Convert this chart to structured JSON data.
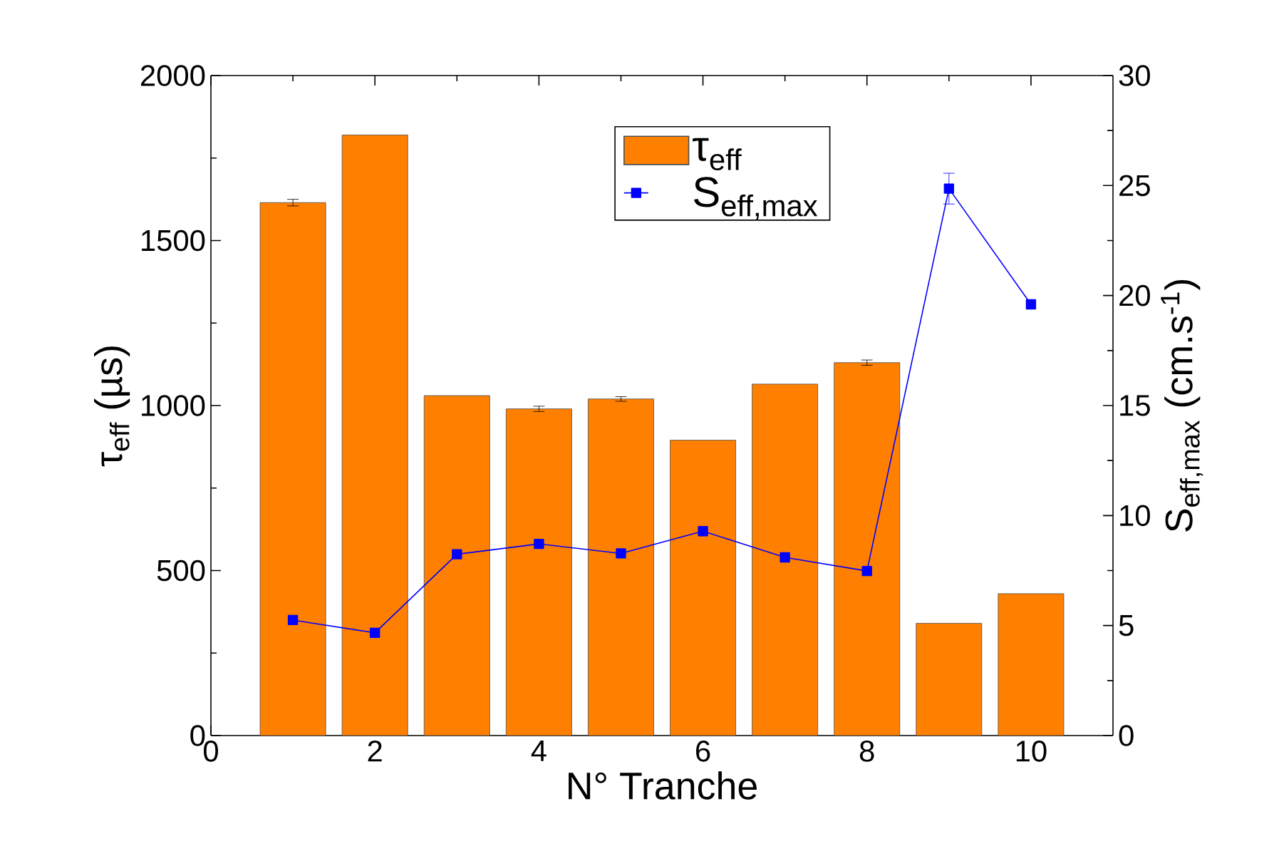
{
  "chart_data": {
    "type": "bar",
    "xlabel": "N° Tranche",
    "ylabel": "τ$_{eff}$ (µs)",
    "y2label": "S$_{eff,max}$ (cm.s$^{-1}$)",
    "x": [
      1,
      2,
      3,
      4,
      5,
      6,
      7,
      8,
      9,
      10
    ],
    "series": [
      {
        "name": "τ$_{eff}$",
        "color": "#ff8000",
        "values": [
          1615,
          1820,
          1030,
          990,
          1020,
          895,
          1065,
          1130,
          340,
          430
        ],
        "errors": [
          10,
          null,
          null,
          8,
          7,
          null,
          null,
          8,
          null,
          null
        ]
      },
      {
        "name": "S$_{eff,max}$",
        "type": "line",
        "axis": "y2",
        "color": "#0000ff",
        "marker": "square",
        "values": [
          5.25,
          4.67,
          8.24,
          8.71,
          8.28,
          9.29,
          8.1,
          7.48,
          24.86,
          19.6
        ],
        "errors": [
          null,
          null,
          null,
          null,
          null,
          null,
          null,
          null,
          0.7,
          null
        ]
      }
    ],
    "xlim": [
      0,
      11
    ],
    "xticks": [
      0,
      2,
      4,
      6,
      8,
      10
    ],
    "ylim": [
      0,
      2000
    ],
    "yticks": [
      0,
      500,
      1000,
      1500,
      2000
    ],
    "y2lim": [
      0,
      30
    ],
    "y2ticks": [
      0,
      5,
      10,
      15,
      20,
      25,
      30
    ],
    "legend": "top",
    "grid": false
  }
}
